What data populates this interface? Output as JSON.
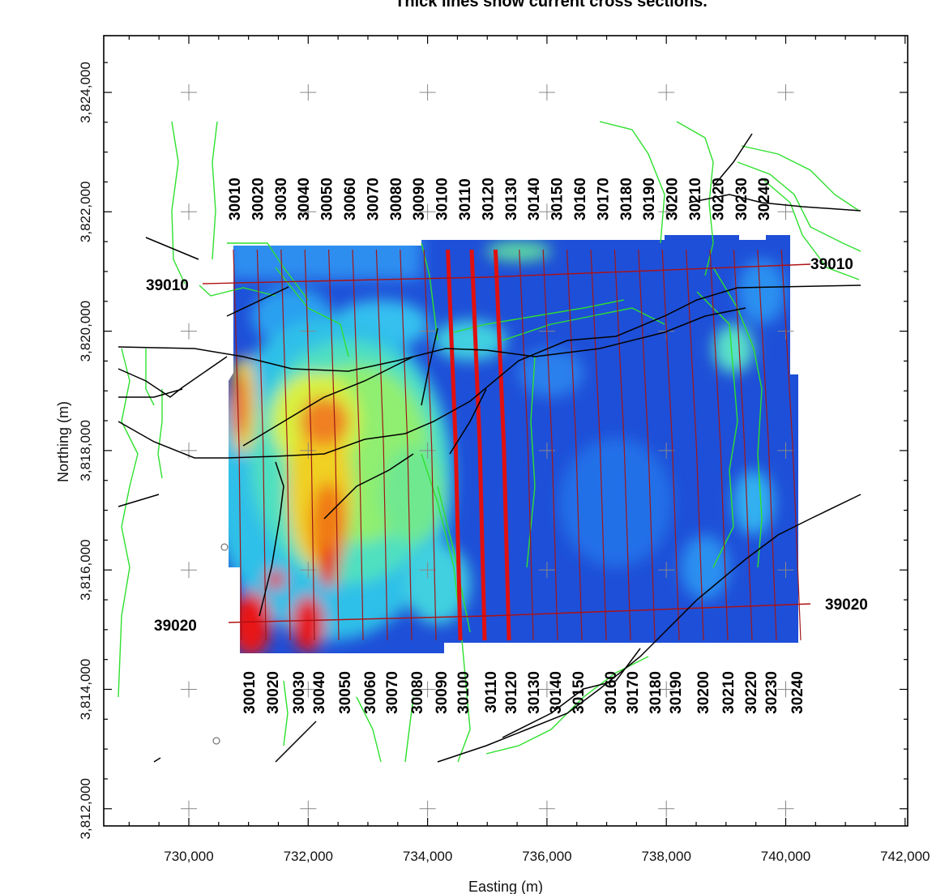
{
  "header": {
    "title": "Thick lines show current cross sections."
  },
  "axes": {
    "x_title": "Easting (m)",
    "y_title": "Northing (m)",
    "x_ticks": [
      {
        "value": 730000,
        "label": "730,000"
      },
      {
        "value": 732000,
        "label": "732,000"
      },
      {
        "value": 734000,
        "label": "734,000"
      },
      {
        "value": 736000,
        "label": "736,000"
      },
      {
        "value": 738000,
        "label": "738,000"
      },
      {
        "value": 740000,
        "label": "740,000"
      },
      {
        "value": 742000,
        "label": "742,000"
      }
    ],
    "y_ticks": [
      {
        "value": 3824000,
        "label": "3,824,000"
      },
      {
        "value": 3822000,
        "label": "3,822,000"
      },
      {
        "value": 3820000,
        "label": "3,820,000"
      },
      {
        "value": 3818000,
        "label": "3,818,000"
      },
      {
        "value": 3816000,
        "label": "3,816,000"
      },
      {
        "value": 3814000,
        "label": "3,814,000"
      },
      {
        "value": 3812000,
        "label": "3,812,000"
      }
    ]
  },
  "survey": {
    "line_color": "#a01818",
    "highlight_color": "#e01010",
    "fault_color": "#000000",
    "contour_color": "#2ee02e",
    "lines_top": [
      "30010",
      "30020",
      "30030",
      "30040",
      "30050",
      "30060",
      "30070",
      "30080",
      "30090",
      "30100",
      "30110",
      "30120",
      "30130",
      "30140",
      "30150",
      "30160",
      "30170",
      "30180",
      "30190",
      "30200",
      "30210",
      "30220",
      "30230",
      "30240"
    ],
    "lines_bottom": [
      "30010",
      "30020",
      "30030",
      "30040",
      "30050",
      "30060",
      "30070",
      "30080",
      "30090",
      "30100",
      "30110",
      "30120",
      "30130",
      "30140",
      "30150",
      "30160",
      "30170",
      "30180",
      "30190",
      "30200",
      "30210",
      "30220",
      "30230",
      "30240"
    ],
    "highlighted_lines": [
      "30100",
      "30110",
      "30120"
    ],
    "tie_lines": [
      {
        "name": "39010",
        "label_left": "39010",
        "label_right": "39010"
      },
      {
        "name": "39020",
        "label_left": "39020",
        "label_right": "39020"
      }
    ]
  }
}
